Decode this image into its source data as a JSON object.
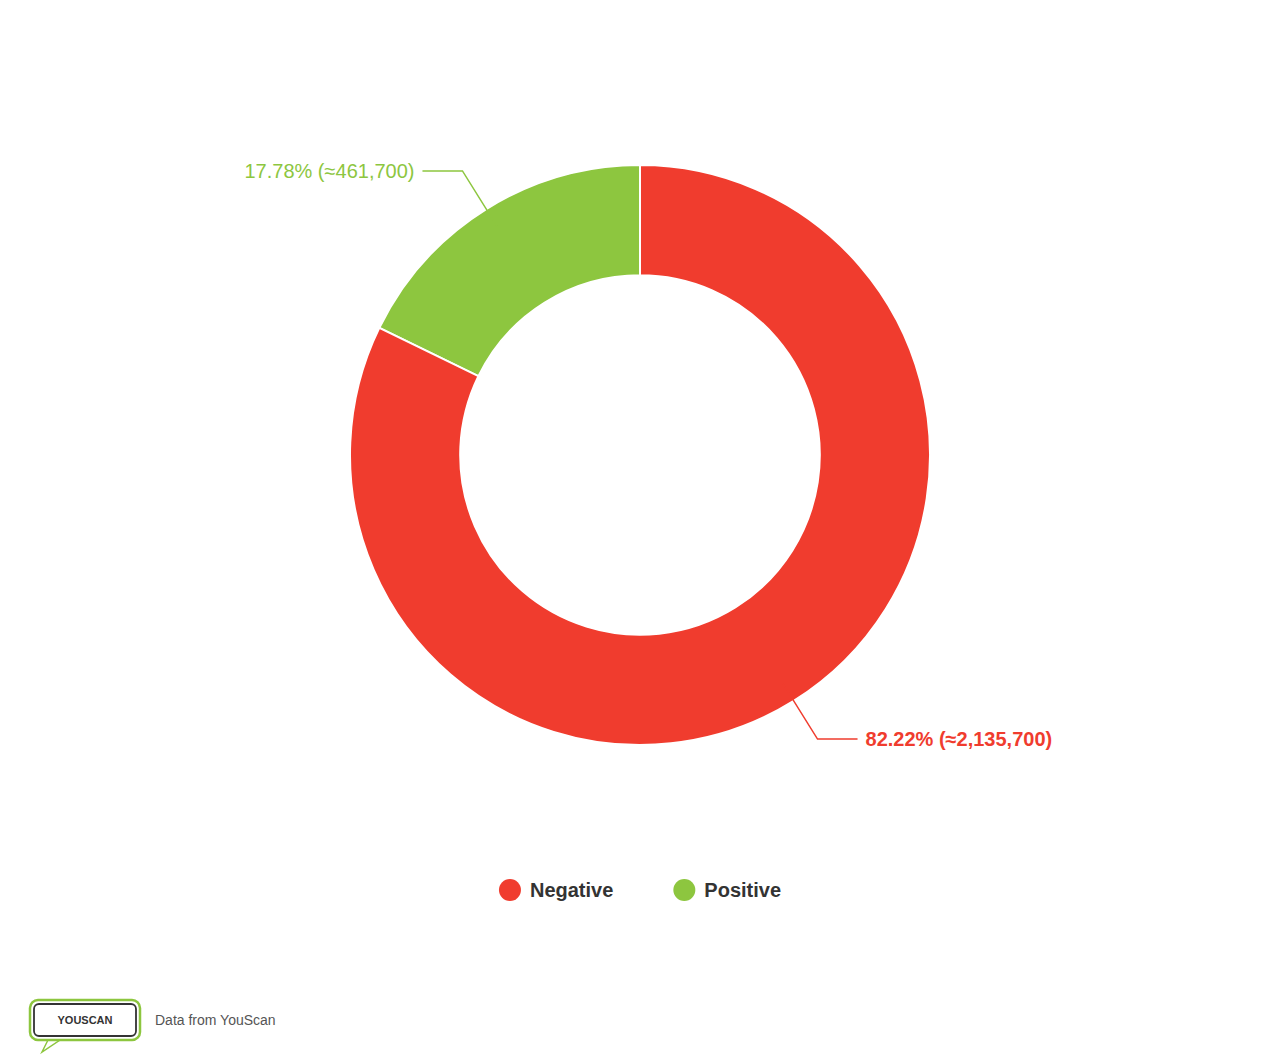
{
  "chart_data": {
    "type": "donut",
    "categories": [
      "Positive",
      "Negative"
    ],
    "values": [
      17.78,
      82.22
    ],
    "colors": [
      "#8DC63F",
      "#F03C2E"
    ],
    "data_labels": true,
    "value_labels": [
      "17.78% (≈461,700)",
      "82.22% (≈2,135,700)"
    ],
    "legend": "bottom",
    "annotations": [
      "YOUSCAN",
      "Data from YouScan"
    ]
  }
}
